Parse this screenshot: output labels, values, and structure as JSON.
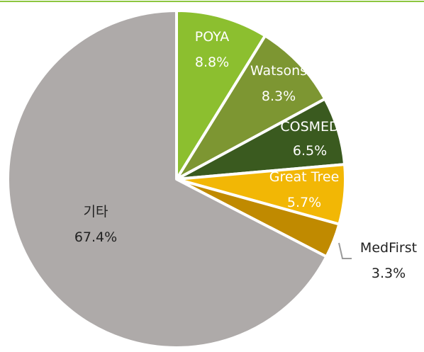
{
  "colors": {
    "top_rule": "#8dc63f",
    "slice_border": "#ffffff",
    "label_light": "#ffffff",
    "label_dark": "#222222",
    "leader_line": "#9a9a9a"
  },
  "chart_data": {
    "type": "pie",
    "title": "",
    "start": "12 o'clock",
    "direction": "clockwise",
    "slices": [
      {
        "label": "POYA",
        "value": 8.8,
        "value_label": "8.8%",
        "color": "#8cbf2f",
        "label_color": "light",
        "label_placement": "inside"
      },
      {
        "label": "Watsons",
        "value": 8.3,
        "value_label": "8.3%",
        "color": "#7d9632",
        "label_color": "light",
        "label_placement": "inside"
      },
      {
        "label": "COSMED",
        "value": 6.5,
        "value_label": "6.5%",
        "color": "#3a5a1f",
        "label_color": "light",
        "label_placement": "inside"
      },
      {
        "label": "Great Tree",
        "value": 5.7,
        "value_label": "5.7%",
        "color": "#f2b705",
        "label_color": "light",
        "label_placement": "inside"
      },
      {
        "label": "MedFirst",
        "value": 3.3,
        "value_label": "3.3%",
        "color": "#c08a00",
        "label_color": "dark",
        "label_placement": "outside"
      },
      {
        "label": "기타",
        "value": 67.4,
        "value_label": "67.4%",
        "color": "#aeaaa9",
        "label_color": "dark",
        "label_placement": "inside"
      }
    ]
  }
}
